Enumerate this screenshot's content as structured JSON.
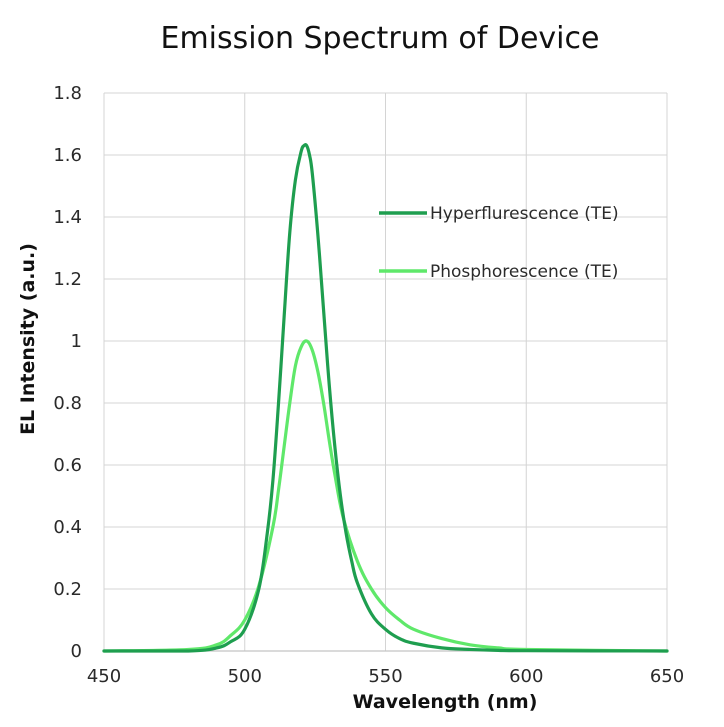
{
  "chart_data": {
    "type": "line",
    "title": "Emission Spectrum of Device",
    "xlabel": "Wavelength (nm)",
    "ylabel": "EL Intensity (a.u.)",
    "xlim": [
      450,
      650
    ],
    "ylim": [
      0,
      1.8
    ],
    "x_ticks": [
      "450",
      "500",
      "550",
      "600",
      "650"
    ],
    "y_ticks": [
      "0",
      "0.2",
      "0.4",
      "0.6",
      "0.8",
      "1",
      "1.2",
      "1.4",
      "1.6",
      "1.8"
    ],
    "grid": true,
    "legend_position": "top-right",
    "series": [
      {
        "name": "Hyperflurescence (TE)",
        "color": "#1e9e4f",
        "x": [
          450,
          480,
          490,
          495,
          500,
          505,
          508,
          510,
          512,
          514,
          516,
          518,
          520,
          521,
          522,
          523,
          524,
          526,
          528,
          530,
          532,
          534,
          536,
          538,
          540,
          545,
          550,
          555,
          560,
          570,
          580,
          590,
          600,
          650
        ],
        "y": [
          0,
          0,
          0.01,
          0.03,
          0.07,
          0.2,
          0.38,
          0.55,
          0.8,
          1.08,
          1.35,
          1.52,
          1.61,
          1.63,
          1.63,
          1.6,
          1.54,
          1.34,
          1.1,
          0.86,
          0.66,
          0.5,
          0.38,
          0.29,
          0.22,
          0.12,
          0.07,
          0.04,
          0.025,
          0.01,
          0.005,
          0.002,
          0.001,
          0
        ]
      },
      {
        "name": "Phosphorescence (TE)",
        "color": "#5fe86a",
        "x": [
          450,
          480,
          490,
          495,
          500,
          505,
          510,
          512,
          514,
          516,
          518,
          520,
          522,
          524,
          526,
          528,
          530,
          532,
          535,
          540,
          545,
          550,
          555,
          560,
          570,
          580,
          590,
          600,
          650
        ],
        "y": [
          0,
          0.005,
          0.02,
          0.05,
          0.1,
          0.21,
          0.4,
          0.52,
          0.66,
          0.8,
          0.92,
          0.98,
          1.0,
          0.97,
          0.9,
          0.8,
          0.68,
          0.57,
          0.43,
          0.29,
          0.2,
          0.14,
          0.1,
          0.07,
          0.04,
          0.02,
          0.01,
          0.005,
          0
        ]
      }
    ]
  }
}
